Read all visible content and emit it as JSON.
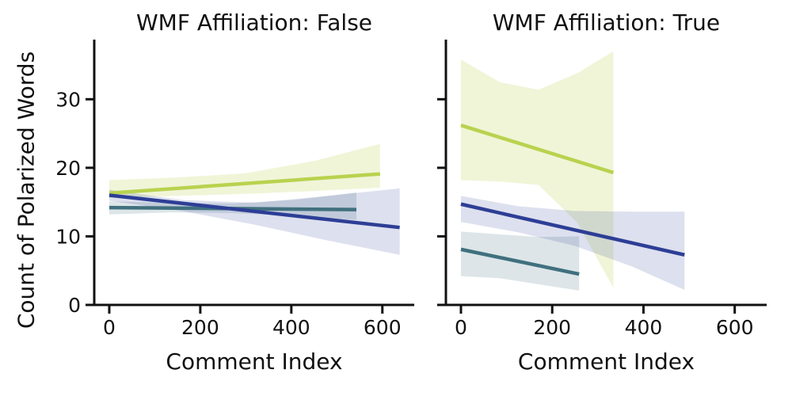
{
  "figure": {
    "background": "#ffffff",
    "axis_color": "#111111",
    "shared_xlabel": "Comment Index",
    "shared_ylabel": "Count of Polarized Words"
  },
  "chart_data": [
    {
      "type": "line",
      "title": "WMF Affiliation: False",
      "xlabel": "Comment Index",
      "ylabel": "Count of Polarized Words",
      "xlim": [
        -33,
        670
      ],
      "ylim": [
        0,
        38.7
      ],
      "xticks": [
        0,
        200,
        400,
        600
      ],
      "xtick_labels": [
        "0",
        "200",
        "400",
        "600"
      ],
      "yticks": [
        0,
        10,
        20,
        30
      ],
      "ytick_labels": [
        "0",
        "10",
        "20",
        "30"
      ],
      "grid": false,
      "legend": "none",
      "series": [
        {
          "name": "regression-green",
          "color": "#b9d24f",
          "band_color": "rgba(185,210,79,0.22)",
          "x": [
            0,
            595
          ],
          "y": [
            16.3,
            19.1
          ],
          "band": {
            "x": [
              0,
              150,
              300,
              450,
              595
            ],
            "upper": [
              18.2,
              18.6,
              19.2,
              21.0,
              23.5
            ],
            "lower": [
              15.6,
              15.9,
              16.2,
              16.6,
              17.1
            ]
          }
        },
        {
          "name": "regression-teal",
          "color": "#40707e",
          "band_color": "rgba(64,112,126,0.18)",
          "x": [
            0,
            543
          ],
          "y": [
            14.2,
            13.9
          ],
          "band": {
            "x": [
              0,
              135,
              270,
              405,
              543
            ],
            "upper": [
              15.1,
              14.9,
              14.8,
              15.3,
              16.4
            ],
            "lower": [
              13.2,
              13.5,
              13.4,
              13.0,
              12.4
            ]
          }
        },
        {
          "name": "regression-blue",
          "color": "#2d3e96",
          "band_color": "rgba(45,62,150,0.16)",
          "x": [
            0,
            638
          ],
          "y": [
            16.0,
            11.3
          ],
          "band": {
            "x": [
              0,
              160,
              320,
              480,
              638
            ],
            "upper": [
              16.8,
              15.3,
              14.9,
              15.9,
              17.0
            ],
            "lower": [
              15.2,
              13.7,
              11.7,
              9.4,
              7.3
            ]
          }
        }
      ]
    },
    {
      "type": "line",
      "title": "WMF Affiliation: True",
      "xlabel": "Comment Index",
      "ylabel": "",
      "xlim": [
        -33,
        670
      ],
      "ylim": [
        0,
        38.7
      ],
      "xticks": [
        0,
        200,
        400,
        600
      ],
      "xtick_labels": [
        "0",
        "200",
        "400",
        "600"
      ],
      "yticks": [
        0,
        10,
        20,
        30
      ],
      "ytick_labels": [],
      "grid": false,
      "legend": "none",
      "series": [
        {
          "name": "regression-green",
          "color": "#b9d24f",
          "band_color": "rgba(185,210,79,0.22)",
          "x": [
            0,
            334
          ],
          "y": [
            26.2,
            19.3
          ],
          "band": {
            "x": [
              0,
              85,
              170,
              255,
              334
            ],
            "upper": [
              35.8,
              32.5,
              31.4,
              33.8,
              37.0
            ],
            "lower": [
              18.2,
              18.0,
              17.5,
              12.0,
              2.5
            ]
          }
        },
        {
          "name": "regression-teal",
          "color": "#40707e",
          "band_color": "rgba(64,112,126,0.18)",
          "x": [
            0,
            259
          ],
          "y": [
            8.1,
            4.5
          ],
          "band": {
            "x": [
              0,
              85,
              170,
              259
            ],
            "upper": [
              10.7,
              10.3,
              9.9,
              10.0
            ],
            "lower": [
              4.2,
              3.9,
              3.0,
              2.1
            ]
          }
        },
        {
          "name": "regression-blue",
          "color": "#2d3e96",
          "band_color": "rgba(45,62,150,0.16)",
          "x": [
            0,
            490
          ],
          "y": [
            14.7,
            7.3
          ],
          "band": {
            "x": [
              0,
              125,
              250,
              375,
              490
            ],
            "upper": [
              15.9,
              14.4,
              13.7,
              13.6,
              13.6
            ],
            "lower": [
              12.1,
              10.6,
              8.6,
              5.6,
              2.2
            ]
          }
        }
      ]
    }
  ]
}
